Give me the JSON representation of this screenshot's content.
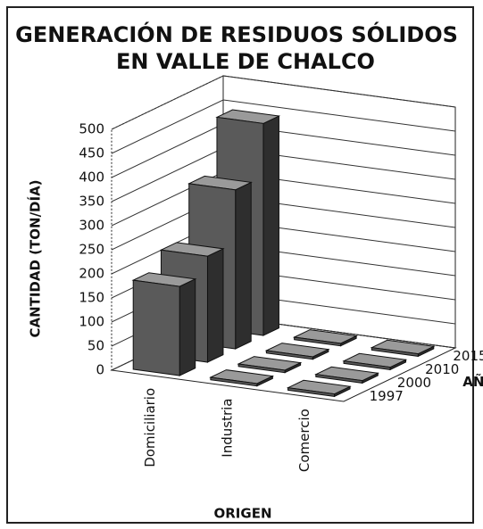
{
  "chart_data": {
    "type": "bar3d",
    "title": "GENERACIÓN DE RESIDUOS SÓLIDOS",
    "subtitle": "EN VALLE DE CHALCO",
    "y_label": "CANTIDAD (TON/DÍA)",
    "x_label": "ORIGEN",
    "z_label": "AÑO",
    "categories": [
      "Domiciliario",
      "Industria",
      "Comercio"
    ],
    "series": [
      {
        "name": "1997",
        "color": "#5a5a5a",
        "values": [
          185,
          5,
          5
        ]
      },
      {
        "name": "2000",
        "color": "#5a5a5a",
        "values": [
          220,
          5,
          5
        ]
      },
      {
        "name": "2010",
        "color": "#5a5a5a",
        "values": [
          330,
          5,
          5
        ]
      },
      {
        "name": "2015",
        "color": "#5a5a5a",
        "values": [
          440,
          5,
          5
        ]
      }
    ],
    "ylim": [
      0,
      500
    ],
    "yticks": [
      0,
      50,
      100,
      150,
      200,
      250,
      300,
      350,
      400,
      450,
      500
    ],
    "grid": true
  }
}
